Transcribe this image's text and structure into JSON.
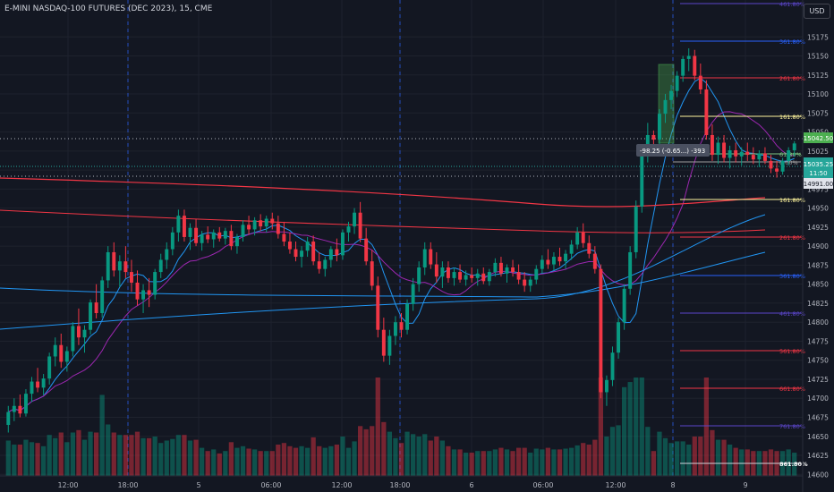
{
  "header": {
    "symbol_title": "E-MINI NASDAQ-100 FUTURES (DEC 2023), 15, CME",
    "currency_button": "USD"
  },
  "colors": {
    "background": "#131722",
    "grid_line": "#1e222d",
    "session_separator": "#2962ff",
    "candle_up": "#089981",
    "candle_down": "#f23645",
    "price_tag": "#26a69a"
  },
  "chart_data": {
    "type": "candlestick",
    "symbol": "E-MINI NASDAQ-100 FUTURES (DEC 2023)",
    "timeframe": "15",
    "exchange": "CME",
    "currency": "USD",
    "ylim": [
      14598,
      15200
    ],
    "y_ticks": [
      15175,
      15150,
      15125,
      15100,
      15075,
      15050,
      15025,
      15000,
      14975,
      14950,
      14925,
      14900,
      14875,
      14850,
      14825,
      14800,
      14775,
      14750,
      14725,
      14700,
      14675,
      14650,
      14625,
      14600
    ],
    "x_tick_labels": [
      "12:00",
      "18:00",
      "5",
      "06:00",
      "12:00",
      "18:00",
      "6",
      "06:00",
      "12:00",
      "8",
      "9"
    ],
    "price_labels": {
      "last_price": "15035.25",
      "countdown": "11:50",
      "level_high": "15042.50",
      "level_low": "14991.00"
    },
    "measure_label": "-98.25 (-0.65...) -393",
    "fib_levels_labels": [
      "461.80%",
      "361.80%",
      "261.80%",
      "161.80%",
      "61.80%",
      "0.00%",
      "161.80%",
      "261.80%",
      "361.80%",
      "461.80%",
      "561.80%",
      "661.80%",
      "761.80%",
      "861.80%"
    ],
    "series": [
      {
        "name": "",
        "kind": "ohlc",
        "values": [
          [
            14665,
            14690,
            14655,
            14682
          ],
          [
            14682,
            14700,
            14670,
            14690
          ],
          [
            14690,
            14705,
            14675,
            14680
          ],
          [
            14680,
            14712,
            14676,
            14706
          ],
          [
            14706,
            14728,
            14695,
            14722
          ],
          [
            14722,
            14740,
            14708,
            14714
          ],
          [
            14714,
            14732,
            14704,
            14726
          ],
          [
            14726,
            14760,
            14718,
            14755
          ],
          [
            14755,
            14780,
            14742,
            14770
          ],
          [
            14770,
            14785,
            14740,
            14748
          ],
          [
            14748,
            14768,
            14735,
            14762
          ],
          [
            14762,
            14800,
            14755,
            14795
          ],
          [
            14795,
            14818,
            14770,
            14780
          ],
          [
            14780,
            14796,
            14760,
            14790
          ],
          [
            14790,
            14830,
            14784,
            14826
          ],
          [
            14826,
            14850,
            14805,
            14812
          ],
          [
            14812,
            14860,
            14806,
            14855
          ],
          [
            14855,
            14900,
            14845,
            14892
          ],
          [
            14892,
            14905,
            14860,
            14868
          ],
          [
            14868,
            14888,
            14846,
            14880
          ],
          [
            14880,
            14900,
            14858,
            14866
          ],
          [
            14866,
            14882,
            14840,
            14852
          ],
          [
            14852,
            14868,
            14822,
            14830
          ],
          [
            14830,
            14850,
            14812,
            14842
          ],
          [
            14842,
            14858,
            14820,
            14836
          ],
          [
            14836,
            14870,
            14830,
            14866
          ],
          [
            14866,
            14890,
            14858,
            14882
          ],
          [
            14882,
            14905,
            14870,
            14896
          ],
          [
            14896,
            14925,
            14888,
            14918
          ],
          [
            14918,
            14948,
            14906,
            14940
          ],
          [
            14940,
            14948,
            14906,
            14912
          ],
          [
            14912,
            14930,
            14895,
            14924
          ],
          [
            14924,
            14936,
            14900,
            14904
          ],
          [
            14904,
            14920,
            14894,
            14915
          ],
          [
            14915,
            14926,
            14904,
            14909
          ],
          [
            14909,
            14922,
            14898,
            14918
          ],
          [
            14918,
            14925,
            14906,
            14910
          ],
          [
            14910,
            14924,
            14902,
            14920
          ],
          [
            14920,
            14928,
            14895,
            14900
          ],
          [
            14900,
            14916,
            14890,
            14912
          ],
          [
            14912,
            14934,
            14906,
            14928
          ],
          [
            14928,
            14940,
            14915,
            14922
          ],
          [
            14922,
            14938,
            14914,
            14934
          ],
          [
            14934,
            14942,
            14920,
            14926
          ],
          [
            14926,
            14940,
            14918,
            14936
          ],
          [
            14936,
            14944,
            14922,
            14930
          ],
          [
            14930,
            14940,
            14910,
            14916
          ],
          [
            14916,
            14932,
            14900,
            14906
          ],
          [
            14906,
            14918,
            14890,
            14896
          ],
          [
            14896,
            14906,
            14880,
            14886
          ],
          [
            14886,
            14900,
            14872,
            14894
          ],
          [
            14894,
            14912,
            14886,
            14906
          ],
          [
            14906,
            14914,
            14875,
            14880
          ],
          [
            14880,
            14892,
            14864,
            14870
          ],
          [
            14870,
            14886,
            14860,
            14882
          ],
          [
            14882,
            14900,
            14872,
            14896
          ],
          [
            14896,
            14910,
            14880,
            14888
          ],
          [
            14888,
            14922,
            14882,
            14918
          ],
          [
            14918,
            14932,
            14906,
            14926
          ],
          [
            14926,
            14950,
            14916,
            14944
          ],
          [
            14944,
            14958,
            14905,
            14910
          ],
          [
            14910,
            14924,
            14875,
            14880
          ],
          [
            14880,
            14895,
            14842,
            14848
          ],
          [
            14848,
            14860,
            14780,
            14790
          ],
          [
            14790,
            14806,
            14748,
            14756
          ],
          [
            14756,
            14790,
            14744,
            14782
          ],
          [
            14782,
            14808,
            14770,
            14800
          ],
          [
            14800,
            14812,
            14780,
            14790
          ],
          [
            14790,
            14830,
            14784,
            14824
          ],
          [
            14824,
            14858,
            14815,
            14850
          ],
          [
            14850,
            14880,
            14840,
            14872
          ],
          [
            14872,
            14905,
            14862,
            14896
          ],
          [
            14896,
            14905,
            14870,
            14876
          ],
          [
            14876,
            14892,
            14852,
            14860
          ],
          [
            14860,
            14880,
            14845,
            14872
          ],
          [
            14872,
            14880,
            14852,
            14858
          ],
          [
            14858,
            14872,
            14848,
            14866
          ],
          [
            14866,
            14876,
            14852,
            14856
          ],
          [
            14856,
            14868,
            14848,
            14862
          ],
          [
            14862,
            14872,
            14852,
            14858
          ],
          [
            14858,
            14870,
            14848,
            14864
          ],
          [
            14864,
            14872,
            14850,
            14854
          ],
          [
            14854,
            14870,
            14848,
            14866
          ],
          [
            14866,
            14884,
            14860,
            14878
          ],
          [
            14878,
            14886,
            14860,
            14864
          ],
          [
            14864,
            14876,
            14852,
            14872
          ],
          [
            14872,
            14882,
            14860,
            14866
          ],
          [
            14866,
            14876,
            14850,
            14856
          ],
          [
            14856,
            14866,
            14840,
            14848
          ],
          [
            14848,
            14860,
            14840,
            14856
          ],
          [
            14856,
            14875,
            14850,
            14870
          ],
          [
            14870,
            14888,
            14864,
            14882
          ],
          [
            14882,
            14896,
            14870,
            14876
          ],
          [
            14876,
            14892,
            14868,
            14886
          ],
          [
            14886,
            14898,
            14874,
            14880
          ],
          [
            14880,
            14895,
            14870,
            14890
          ],
          [
            14890,
            14908,
            14882,
            14902
          ],
          [
            14902,
            14925,
            14896,
            14918
          ],
          [
            14918,
            14930,
            14898,
            14904
          ],
          [
            14904,
            14914,
            14884,
            14890
          ],
          [
            14890,
            14900,
            14864,
            14870
          ],
          [
            14870,
            14876,
            14700,
            14708
          ],
          [
            14708,
            14730,
            14690,
            14724
          ],
          [
            14724,
            14768,
            14716,
            14760
          ],
          [
            14760,
            14806,
            14752,
            14800
          ],
          [
            14800,
            14850,
            14790,
            14844
          ],
          [
            14844,
            14900,
            14836,
            14892
          ],
          [
            14892,
            14960,
            14884,
            14952
          ],
          [
            14952,
            15030,
            14944,
            15022
          ],
          [
            15022,
            15062,
            15010,
            15046
          ],
          [
            15046,
            15052,
            15030,
            15040
          ],
          [
            15040,
            15080,
            15034,
            15074
          ],
          [
            15074,
            15100,
            15062,
            15092
          ],
          [
            15092,
            15112,
            15080,
            15104
          ],
          [
            15104,
            15130,
            15096,
            15124
          ],
          [
            15124,
            15150,
            15116,
            15146
          ],
          [
            15146,
            15160,
            15130,
            15150
          ],
          [
            15150,
            15158,
            15118,
            15124
          ],
          [
            15124,
            15140,
            15100,
            15106
          ],
          [
            15106,
            15118,
            15040,
            15046
          ],
          [
            15046,
            15060,
            15012,
            15020
          ],
          [
            15020,
            15044,
            15008,
            15036
          ],
          [
            15036,
            15046,
            15010,
            15016
          ],
          [
            15016,
            15032,
            15002,
            15026
          ],
          [
            15026,
            15036,
            15010,
            15018
          ],
          [
            15018,
            15030,
            15006,
            15024
          ],
          [
            15024,
            15036,
            15012,
            15020
          ],
          [
            15020,
            15030,
            15008,
            15014
          ],
          [
            15014,
            15026,
            15004,
            15022
          ],
          [
            15022,
            15030,
            15008,
            15012
          ],
          [
            15012,
            15020,
            14996,
            15002
          ],
          [
            15002,
            15012,
            14990,
            14998
          ],
          [
            14998,
            15016,
            14994,
            15012
          ],
          [
            15012,
            15030,
            15006,
            15026
          ],
          [
            15026,
            15038,
            15018,
            15035
          ]
        ]
      }
    ],
    "moving_averages": [
      {
        "name": "",
        "color": "#f23645"
      },
      {
        "name": "",
        "color": "#2196f3"
      },
      {
        "name": "",
        "color": "#9c27b0"
      }
    ]
  }
}
